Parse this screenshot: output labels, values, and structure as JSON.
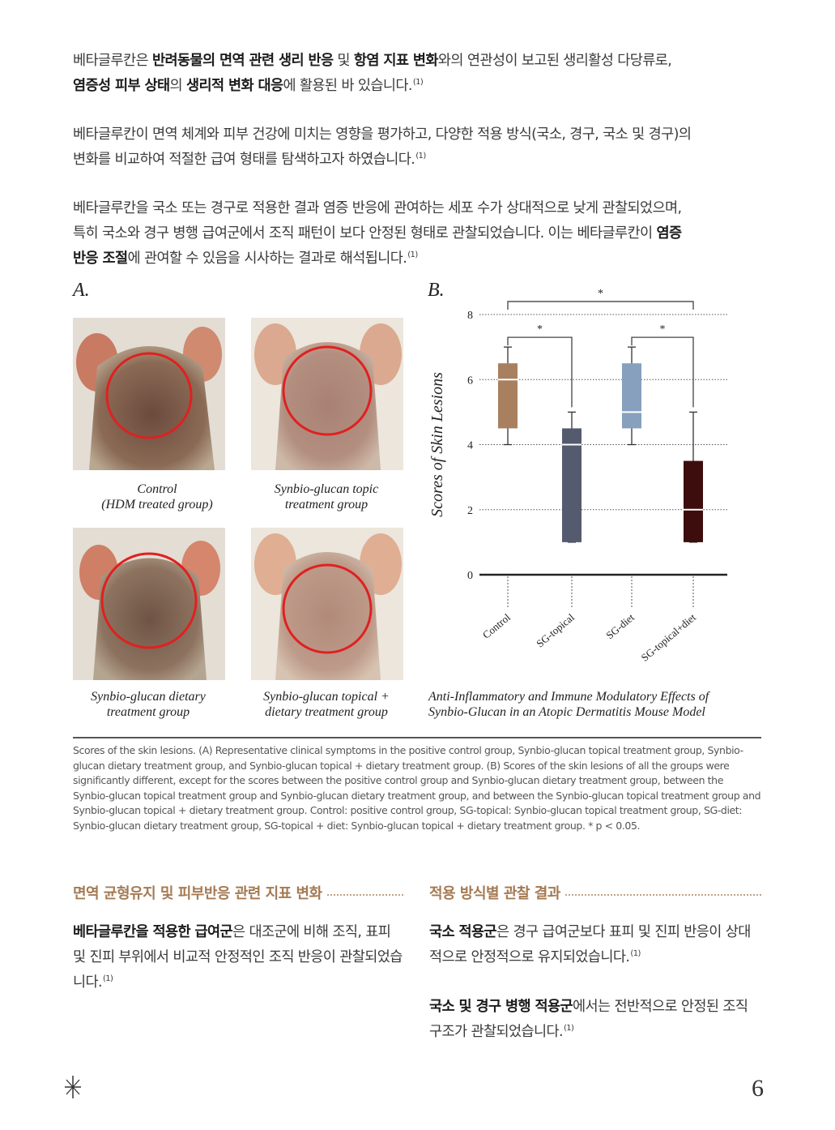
{
  "intro": {
    "p1": {
      "s1": "베타글루칸은 ",
      "b1": "반려동물의 면역 관련 생리 반응",
      "s2": " 및 ",
      "b2": "항염 지표 변화",
      "s3": "와의 연관성이 보고된 생리활성 다당류로,",
      "b3": "염증성 피부 상태",
      "s4": "의 ",
      "b4": "생리적 변화 대응",
      "s5": "에 활용된 바 있습니다.",
      "ref": "(1)"
    },
    "p2": {
      "l1": "베타글루칸이 면역 체계와 피부 건강에 미치는 영향을 평가하고, 다양한 적용 방식(국소, 경구, 국소 및 경구)의",
      "l2": "변화를 비교하여 적절한 급여 형태를 탐색하고자 하였습니다.",
      "ref": "(1)"
    },
    "p3": {
      "l1": "베타글루칸을 국소 또는 경구로 적용한 결과 염증 반응에 관여하는 세포 수가 상대적으로 낮게 관찰되었으며,",
      "l2": "특히 국소와 경구 병행 급여군에서 조직 패턴이 보다 안정된 형태로 관찰되었습니다. 이는 베타글루칸이 ",
      "b1": "염증",
      "b2": "반응 조절",
      "l3": "에 관여할 수 있음을 시사하는 결과로 해석됩니다.",
      "ref": "(1)"
    }
  },
  "figure": {
    "label_a": "A.",
    "label_b": "B.",
    "photos": [
      {
        "line1": "Control",
        "line2": "(HDM treated group)"
      },
      {
        "line1": "Synbio-glucan topic",
        "line2": "treatment group"
      },
      {
        "line1": "Synbio-glucan dietary",
        "line2": "treatment group"
      },
      {
        "line1": "Synbio-glucan topical +",
        "line2": "dietary treatment group"
      }
    ],
    "caption_b": {
      "line1": "Anti-Inflammatory and Immune Modulatory Effects of",
      "line2": "Synbio-Glucan in an Atopic Dermatitis Mouse Model"
    }
  },
  "chart_data": {
    "type": "boxplot",
    "ylabel": "Scores of Skin Lesions",
    "ylim": [
      0,
      8
    ],
    "yticks": [
      "0",
      "2",
      "4",
      "6",
      "8"
    ],
    "grid": "dotted horizontal",
    "categories": [
      "Control",
      "SG-topical",
      "SG-diet",
      "SG-topical+diet"
    ],
    "boxes": [
      {
        "min": 4,
        "q1": 4.5,
        "median": 6,
        "q3": 6.5,
        "max": 7,
        "color": "#a8805f"
      },
      {
        "min": 1,
        "q1": 1,
        "median": 4,
        "q3": 4.5,
        "max": 5,
        "color": "#555b6e"
      },
      {
        "min": 4,
        "q1": 4.5,
        "median": 5,
        "q3": 6.5,
        "max": 7,
        "color": "#86a0bd"
      },
      {
        "min": 1,
        "q1": 1,
        "median": 2,
        "q3": 3.5,
        "max": 5,
        "color": "#3d0d0e"
      }
    ],
    "significance": [
      {
        "pair": [
          0,
          1
        ],
        "label": "*"
      },
      {
        "pair": [
          2,
          3
        ],
        "label": "*"
      },
      {
        "pair": [
          0,
          3
        ],
        "label": "*"
      }
    ]
  },
  "figure_note": "Scores of the skin lesions. (A) Representative clinical symptoms in the positive control group, Synbio-glucan topical treatment group, Synbio-glucan dietary treatment group, and Synbio-glucan topical + dietary treatment group. (B) Scores of the skin lesions of all the groups were significantly different, except for the scores between the positive control group and Synbio-glucan dietary treatment group, between the Synbio-glucan topical treatment group and Synbio-glucan dietary treatment group, and between the Synbio-glucan topical treatment group and Synbio-glucan topical + dietary treatment group. Control: positive control group, SG-topical: Synbio-glucan topical treatment group, SG-diet: Synbio-glucan dietary treatment group, SG-topical + diet: Synbio-glucan topical + dietary treatment group. * p < 0.05.",
  "section_left": {
    "title": "면역 균형유지 및 피부반응 관련 지표 변화",
    "bold": "베타글루칸을 적용한  급여군",
    "text": "은 대조군에 비해 조직, 표피 및 진피 부위에서 비교적 안정적인 조직 반응이 관찰되었습니다.",
    "ref": "(1)"
  },
  "section_right": {
    "title": "적용 방식별 관찰 결과",
    "p1_bold": "국소 적용군",
    "p1_text": "은 경구 급여군보다 표피 및 진피 반응이 상대적으로 안정적으로 유지되었습니다.",
    "p1_ref": "(1)",
    "p2_bold": "국소 및 경구 병행 적용군",
    "p2_text": "에서는 전반적으로 안정된 조직 구조가 관찰되었습니다.",
    "p2_ref": "(1)"
  },
  "footer": {
    "page_number": "6",
    "icon": "asterisk-sparkle-icon"
  }
}
